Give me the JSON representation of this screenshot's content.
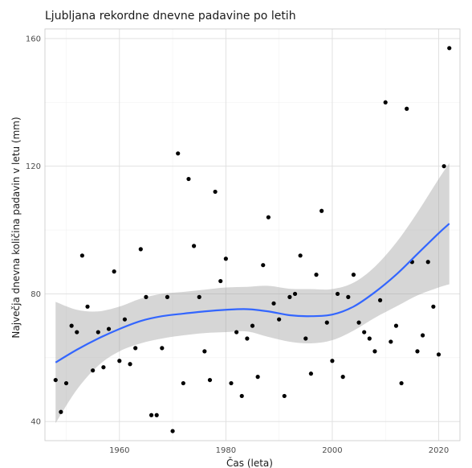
{
  "chart_data": {
    "type": "scatter",
    "title": "Ljubljana rekordne dnevne padavine po letih",
    "xlabel": "Čas (leta)",
    "ylabel": "Največja dnevna količina padavin v letu (mm)",
    "xlim": [
      1946,
      2024
    ],
    "ylim": [
      34,
      163
    ],
    "xticks": [
      1960,
      1980,
      2000,
      2020
    ],
    "yticks": [
      40,
      80,
      120,
      160
    ],
    "grid": true,
    "legend": "none",
    "colors": {
      "points": "#000000",
      "smooth_line": "#3366ff",
      "confidence_band": "#999999"
    },
    "series": [
      {
        "type": "scatter",
        "x": [
          1948,
          1949,
          1950,
          1951,
          1952,
          1953,
          1954,
          1955,
          1956,
          1957,
          1958,
          1959,
          1960,
          1961,
          1962,
          1963,
          1964,
          1965,
          1966,
          1967,
          1968,
          1969,
          1970,
          1971,
          1972,
          1973,
          1974,
          1975,
          1976,
          1977,
          1978,
          1979,
          1980,
          1981,
          1982,
          1983,
          1984,
          1985,
          1986,
          1987,
          1988,
          1989,
          1990,
          1991,
          1992,
          1993,
          1994,
          1995,
          1996,
          1997,
          1998,
          1999,
          2000,
          2001,
          2002,
          2003,
          2004,
          2005,
          2006,
          2007,
          2008,
          2009,
          2010,
          2011,
          2012,
          2013,
          2014,
          2015,
          2016,
          2017,
          2018,
          2019,
          2020,
          2021,
          2022
        ],
        "y": [
          53,
          43,
          52,
          70,
          68,
          92,
          76,
          56,
          68,
          57,
          69,
          87,
          59,
          72,
          58,
          63,
          94,
          79,
          42,
          42,
          63,
          79,
          37,
          124,
          52,
          116,
          95,
          79,
          62,
          53,
          112,
          84,
          91,
          52,
          68,
          48,
          66,
          70,
          54,
          89,
          104,
          77,
          72,
          48,
          79,
          80,
          92,
          66,
          55,
          86,
          106,
          71,
          59,
          80,
          54,
          79,
          86,
          71,
          68,
          66,
          62,
          78,
          140,
          65,
          70,
          52,
          138,
          90,
          62,
          67,
          90,
          76,
          61,
          120,
          157
        ]
      },
      {
        "type": "smooth",
        "x": [
          1948,
          1952,
          1956,
          1960,
          1964,
          1968,
          1972,
          1976,
          1980,
          1984,
          1988,
          1992,
          1996,
          2000,
          2004,
          2008,
          2012,
          2016,
          2020,
          2022
        ],
        "y": [
          58.5,
          62.5,
          66,
          69,
          71.5,
          73,
          73.8,
          74.5,
          75,
          75.2,
          74.5,
          73.3,
          73,
          73.5,
          76,
          80.5,
          86,
          92.5,
          99,
          102
        ],
        "lower": [
          39.5,
          50,
          57.5,
          62,
          64.5,
          66,
          67,
          67.7,
          68,
          68.2,
          66.5,
          65,
          64.5,
          65.5,
          68.5,
          72.5,
          76,
          79.5,
          82,
          83
        ],
        "upper": [
          77.5,
          75,
          74.5,
          76,
          78.5,
          80,
          80.6,
          81.3,
          82,
          82.2,
          82.5,
          81.6,
          81.5,
          81.5,
          83.5,
          88.5,
          96,
          105.5,
          116,
          121
        ]
      }
    ]
  }
}
